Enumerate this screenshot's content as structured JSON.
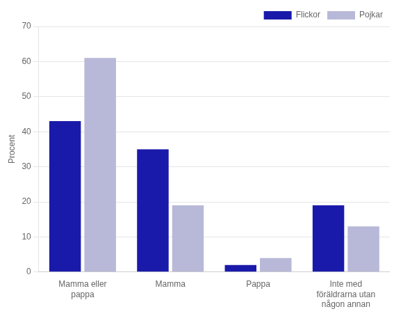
{
  "chart_data": {
    "type": "bar",
    "ylabel": "Procent",
    "categories": [
      "Mamma eller\npappa",
      "Mamma",
      "Pappa",
      "Inte med\nföräldrarna utan\nnågon annan"
    ],
    "series": [
      {
        "name": "Flickor",
        "color": "#1a1aaa",
        "values": [
          43,
          35,
          2,
          19
        ]
      },
      {
        "name": "Pojkar",
        "color": "#b8b8d8",
        "values": [
          61,
          19,
          4,
          13
        ]
      }
    ],
    "ylim": [
      0,
      70
    ],
    "yticks": [
      0,
      10,
      20,
      30,
      40,
      50,
      60,
      70
    ],
    "grid": true,
    "legend": "upper right"
  }
}
